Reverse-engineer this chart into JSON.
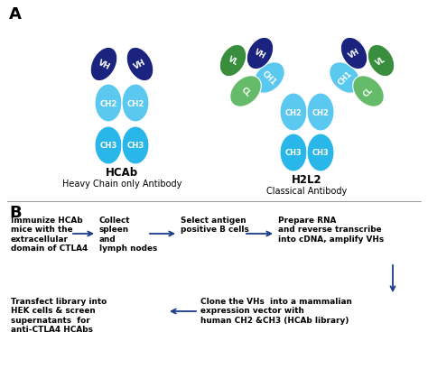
{
  "panel_a_label": "A",
  "panel_b_label": "B",
  "dark_blue": "#1a237e",
  "light_blue": "#5bc8f0",
  "cyan_blue": "#29b6e8",
  "green": "#66bb6a",
  "dark_green": "#388e3c",
  "arrow_color": "#1a3a8a",
  "text_color": "#000000",
  "bg_color": "#ffffff",
  "flow_steps": [
    "Immunize HCAb\nmice with the\nextracellular\ndomain of CTLA4",
    "Collect\nspleen\nand\nlymph nodes",
    "Select antigen\npositive B cells",
    "Prepare RNA\nand reverse transcribe\ninto cDNA, amplify VHs"
  ],
  "flow_steps_row2_right": "Clone the VHs  into a mammalian\nexpression vector with\nhuman CH2 &CH3 (HCAb library)",
  "flow_steps_row2_left": "Transfect library into\nHEK cells & screen\nsupernatants  for\nanti-CTLA4 HCAbs"
}
